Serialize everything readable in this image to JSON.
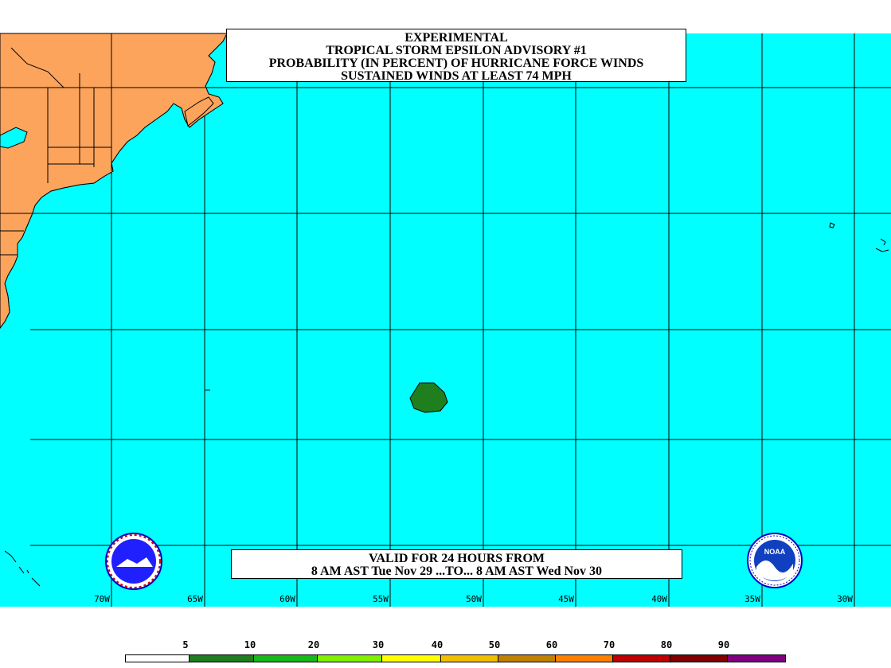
{
  "title_lines": [
    "EXPERIMENTAL",
    "TROPICAL STORM EPSILON ADVISORY #1",
    "PROBABILITY (IN PERCENT) OF HURRICANE FORCE WINDS",
    "SUSTAINED WINDS AT LEAST 74 MPH"
  ],
  "valid_lines": [
    "VALID FOR 24 HOURS FROM",
    "8 AM AST Tue Nov 29 ...TO... 8 AM AST Wed Nov 30"
  ],
  "longitude_labels": [
    "70W",
    "65W",
    "60W",
    "55W",
    "50W",
    "45W",
    "40W",
    "35W",
    "30W"
  ],
  "scale_labels": [
    "5",
    "10",
    "20",
    "30",
    "40",
    "50",
    "60",
    "70",
    "80",
    "90"
  ],
  "scale_colors": [
    "#ffffff",
    "#1f7f1f",
    "#18b818",
    "#80f000",
    "#ffff00",
    "#f0c000",
    "#c08000",
    "#ff8000",
    "#c00000",
    "#800000",
    "#800080"
  ],
  "colors": {
    "ocean": "#00ffff",
    "land": "#fda45c",
    "probability_area": "#1f7f1f",
    "grid": "#000000"
  },
  "logos": [
    "nws-logo",
    "noaa-logo"
  ],
  "noaa_logo_text": "NOAA"
}
